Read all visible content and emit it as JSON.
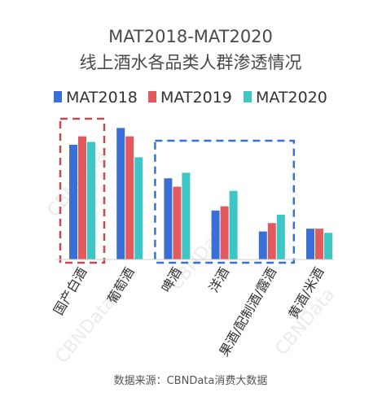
{
  "chart_data": {
    "type": "bar",
    "title": "MAT2018-MAT2020",
    "subtitle": "线上酒水各品类人群渗透情况",
    "categories": [
      "国产白酒",
      "葡萄酒",
      "啤酒",
      "洋酒",
      "果酒/配制酒/露酒",
      "黄酒/米酒"
    ],
    "series": [
      {
        "name": "MAT2018",
        "color": "#3a6fd8",
        "values": [
          82,
          94,
          58,
          35,
          20,
          22
        ]
      },
      {
        "name": "MAT2019",
        "color": "#e05a5e",
        "values": [
          88,
          88,
          52,
          38,
          26,
          22
        ]
      },
      {
        "name": "MAT2020",
        "color": "#3ec6c6",
        "values": [
          84,
          73,
          62,
          49,
          32,
          19
        ]
      }
    ],
    "ylim": [
      0,
      100
    ],
    "axes_visible": false,
    "grid": false,
    "legend_position": "top",
    "highlight_boxes": [
      {
        "categories": [
          "国产白酒"
        ],
        "color": "#c9484b",
        "style": "dashed"
      },
      {
        "categories": [
          "啤酒",
          "洋酒",
          "果酒/配制酒/露酒"
        ],
        "color": "#3a6fd8",
        "style": "dashed"
      }
    ]
  },
  "source": "数据来源：CBNData消费大数据",
  "watermark": "CBNData"
}
